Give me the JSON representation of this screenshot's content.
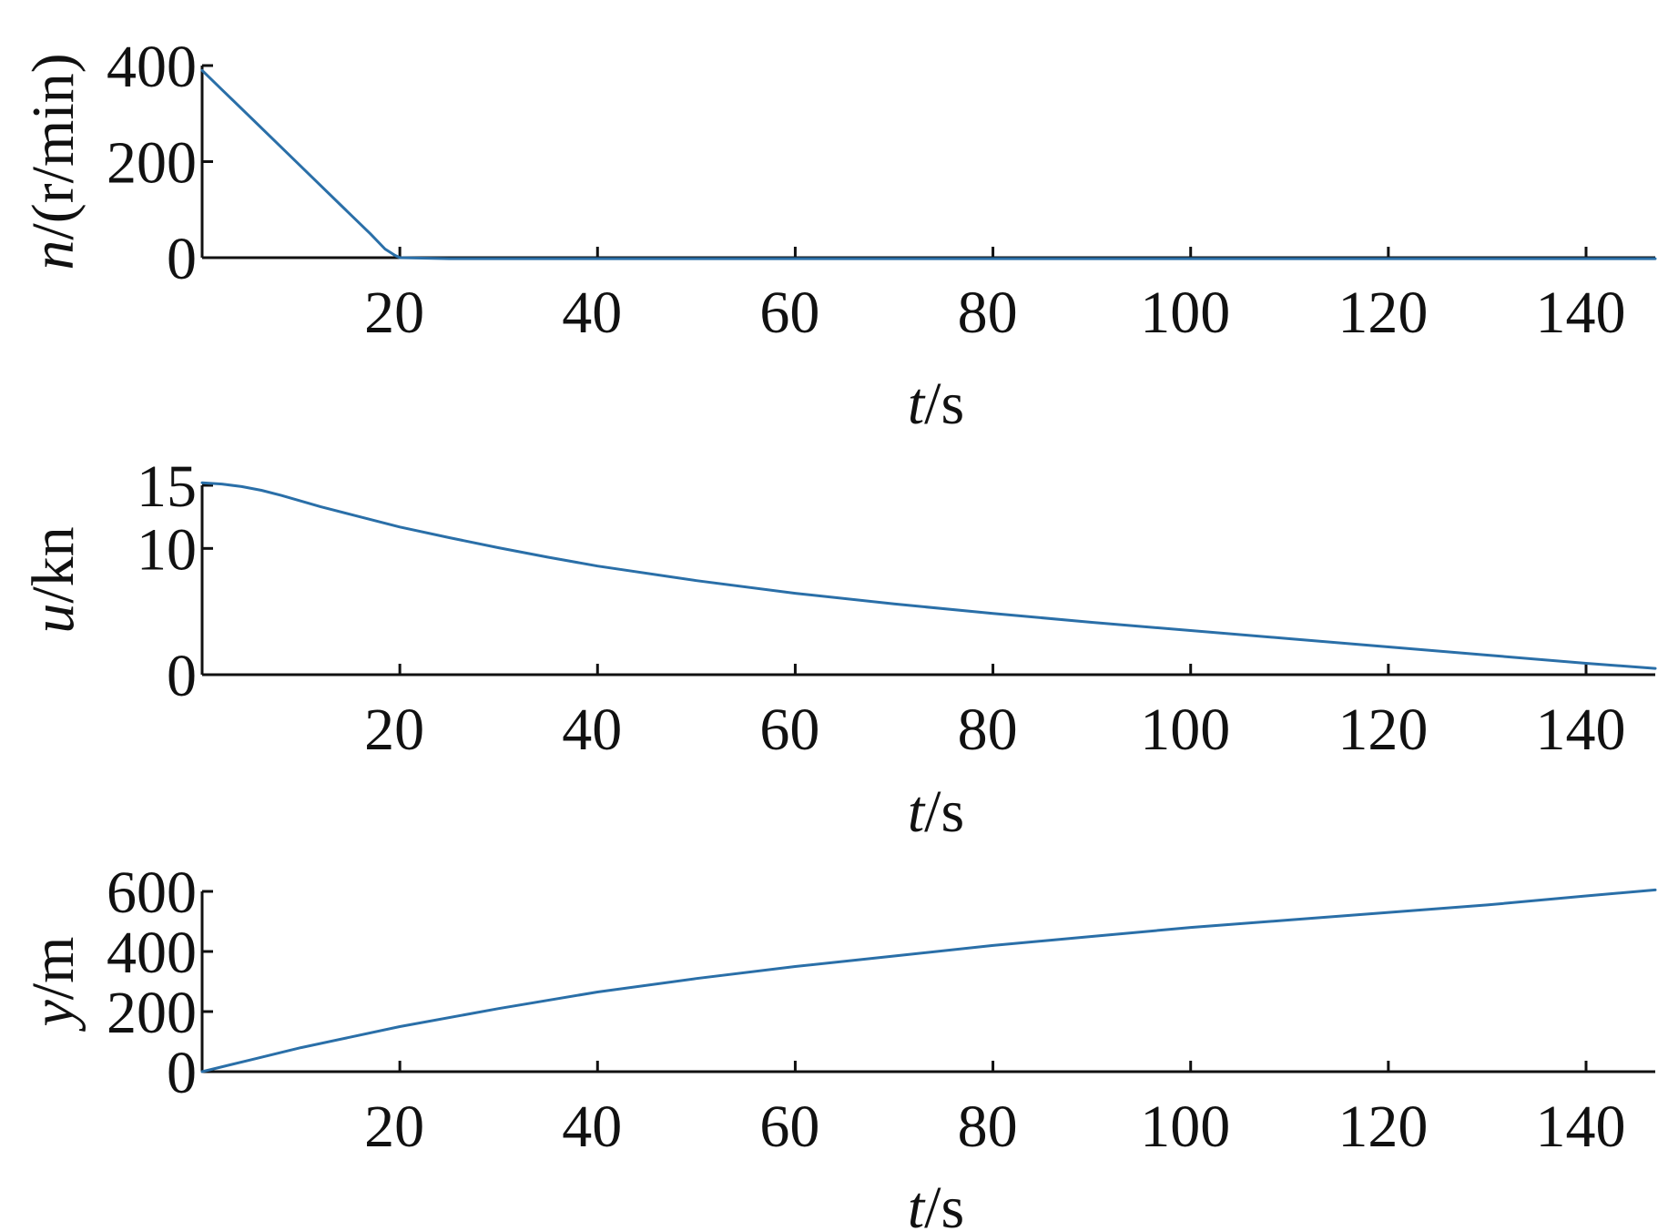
{
  "chart_data": [
    {
      "type": "line",
      "xlabel": {
        "italic": "t",
        "rest": "/s"
      },
      "ylabel": {
        "italic": "n",
        "rest": "/(r/min)"
      },
      "xlim": [
        0,
        147
      ],
      "ylim": [
        0,
        400
      ],
      "xticks": [
        20,
        40,
        60,
        80,
        100,
        120,
        140
      ],
      "yticks": [
        0,
        200,
        400
      ],
      "color": "#2a6fa8",
      "series": [
        {
          "x": [
            0,
            2,
            5,
            8,
            11,
            14,
            17,
            18.5,
            19.5,
            20,
            25,
            40,
            60,
            80,
            100,
            120,
            140,
            147
          ],
          "y": [
            390,
            350,
            290,
            230,
            170,
            110,
            50,
            18,
            5,
            0,
            -2,
            -2,
            -2,
            -2,
            -2,
            -2,
            -2,
            -2
          ]
        }
      ]
    },
    {
      "type": "line",
      "xlabel": {
        "italic": "t",
        "rest": "/s"
      },
      "ylabel": {
        "italic": "u",
        "rest": "/kn"
      },
      "xlim": [
        0,
        147
      ],
      "ylim": [
        0,
        15
      ],
      "xticks": [
        20,
        40,
        60,
        80,
        100,
        120,
        140
      ],
      "yticks": [
        0,
        10,
        15
      ],
      "color": "#2a6fa8",
      "series": [
        {
          "x": [
            0,
            2,
            4,
            6,
            8,
            10,
            12,
            15,
            20,
            25,
            30,
            35,
            40,
            50,
            60,
            70,
            80,
            90,
            100,
            110,
            120,
            130,
            140,
            147
          ],
          "y": [
            15.2,
            15.1,
            14.9,
            14.6,
            14.2,
            13.75,
            13.3,
            12.7,
            11.7,
            10.85,
            10.05,
            9.3,
            8.6,
            7.45,
            6.45,
            5.6,
            4.85,
            4.15,
            3.5,
            2.85,
            2.2,
            1.55,
            0.9,
            0.5
          ]
        }
      ]
    },
    {
      "type": "line",
      "xlabel": {
        "italic": "t",
        "rest": "/s"
      },
      "ylabel": {
        "italic": "y",
        "rest": "/m"
      },
      "xlim": [
        0,
        147
      ],
      "ylim": [
        0,
        600
      ],
      "xticks": [
        20,
        40,
        60,
        80,
        100,
        120,
        140
      ],
      "yticks": [
        0,
        200,
        400,
        600
      ],
      "color": "#2a6fa8",
      "series": [
        {
          "x": [
            0,
            5,
            10,
            20,
            30,
            40,
            50,
            60,
            70,
            80,
            90,
            100,
            110,
            120,
            130,
            140,
            147
          ],
          "y": [
            0,
            40,
            80,
            150,
            210,
            265,
            310,
            350,
            385,
            420,
            450,
            480,
            505,
            530,
            555,
            585,
            605
          ]
        }
      ]
    }
  ]
}
